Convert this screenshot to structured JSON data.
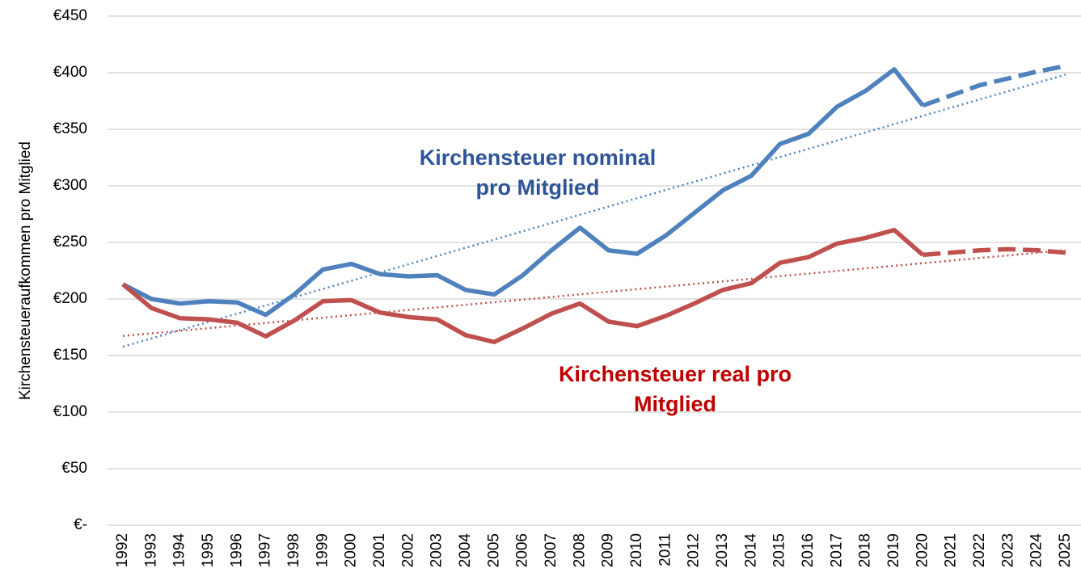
{
  "chart_data": {
    "type": "line",
    "y_label": "Kirchensteueraufkommen pro Mitglied",
    "x": [
      "1992",
      "1993",
      "1994",
      "1995",
      "1996",
      "1997",
      "1998",
      "1999",
      "2000",
      "2001",
      "2002",
      "2003",
      "2004",
      "2005",
      "2006",
      "2007",
      "2008",
      "2009",
      "2010",
      "2011",
      "2012",
      "2013",
      "2014",
      "2015",
      "2016",
      "2017",
      "2018",
      "2019",
      "2020",
      "2021",
      "2022",
      "2023",
      "2024",
      "2025"
    ],
    "projection_from": "2020",
    "trendline": true,
    "series": [
      {
        "color": "#4f81bd",
        "values": [
          213,
          200,
          196,
          198,
          197,
          186,
          204,
          226,
          231,
          222,
          220,
          221,
          208,
          204,
          221,
          243,
          263,
          243,
          240,
          256,
          276,
          296,
          309,
          337,
          346,
          370,
          384,
          403,
          371,
          380,
          389,
          395,
          401,
          406
        ]
      },
      {
        "color": "#c0504d",
        "values": [
          213,
          192,
          183,
          182,
          179,
          167,
          181,
          198,
          199,
          188,
          184,
          182,
          168,
          162,
          174,
          187,
          196,
          180,
          176,
          185,
          196,
          208,
          214,
          232,
          237,
          249,
          254,
          261,
          239,
          241,
          243,
          244,
          243,
          241
        ]
      }
    ],
    "annotations": [
      {
        "lines": [
          "Kirchensteuer nominal",
          "pro Mitglied"
        ],
        "color": "#2e5597"
      },
      {
        "lines": [
          "Kirchensteuer real pro",
          "Mitglied"
        ],
        "color": "#c00000"
      }
    ],
    "ylim": [
      0,
      450
    ],
    "yticks": [
      {
        "value": 0,
        "label": "€-"
      },
      {
        "value": 50,
        "label": "€50"
      },
      {
        "value": 100,
        "label": "€100"
      },
      {
        "value": 150,
        "label": "€150"
      },
      {
        "value": 200,
        "label": "€200"
      },
      {
        "value": 250,
        "label": "€250"
      },
      {
        "value": 300,
        "label": "€300"
      },
      {
        "value": 350,
        "label": "€350"
      },
      {
        "value": 400,
        "label": "€400"
      },
      {
        "value": 450,
        "label": "€450"
      }
    ],
    "grid": true
  }
}
